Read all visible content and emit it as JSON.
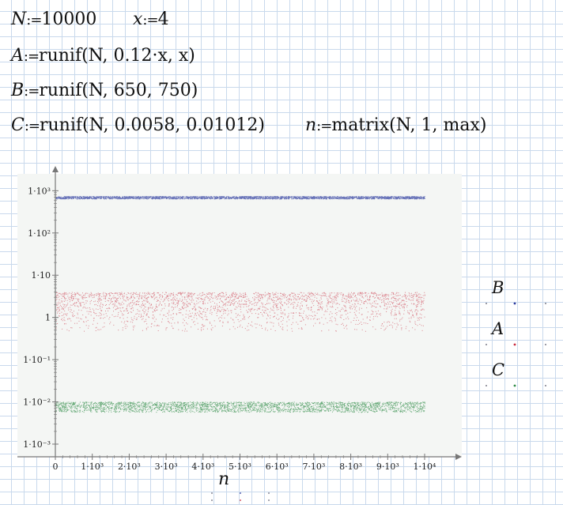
{
  "worksheet": {
    "def_N": {
      "var": "N",
      "op": ":=",
      "expr": "10000"
    },
    "def_x": {
      "var": "x",
      "op": ":=",
      "expr": "4"
    },
    "def_A": {
      "var": "A",
      "op": ":=",
      "expr": "runif(N, 0.12·x, x)"
    },
    "def_B": {
      "var": "B",
      "op": ":=",
      "expr": "runif(N, 650, 750)"
    },
    "def_C": {
      "var": "C",
      "op": ":=",
      "expr": "runif(N, 0.0058, 0.01012)"
    },
    "def_n": {
      "var": "n",
      "op": ":=",
      "expr": "matrix(N, 1, max)"
    }
  },
  "chart_data": {
    "type": "scatter",
    "xlabel": "n",
    "xlim": [
      0,
      10000
    ],
    "ylim_log10": [
      -3.3,
      3.4
    ],
    "yscale": "log",
    "x_ticks": [
      "0",
      "1·10³",
      "2·10³",
      "3·10³",
      "4·10³",
      "5·10³",
      "6·10³",
      "7·10³",
      "8·10³",
      "9·10³",
      "1·10⁴"
    ],
    "y_ticks": [
      {
        "value": 1000,
        "label": "1·10³"
      },
      {
        "value": 100,
        "label": "1·10²"
      },
      {
        "value": 10,
        "label": "1·10"
      },
      {
        "value": 1,
        "label": "1"
      },
      {
        "value": 0.1,
        "label": "1·10⁻¹"
      },
      {
        "value": 0.01,
        "label": "1·10⁻²"
      },
      {
        "value": 0.001,
        "label": "1·10⁻³"
      }
    ],
    "series": [
      {
        "name": "B",
        "color": "#2b3a9e",
        "y_range": [
          650,
          750
        ]
      },
      {
        "name": "A",
        "color": "#c8283c",
        "y_range": [
          0.48,
          4
        ]
      },
      {
        "name": "C",
        "color": "#2e8b46",
        "y_range": [
          0.0058,
          0.01012
        ]
      }
    ],
    "n_points": 10000,
    "grid": false,
    "legend_placement": "right"
  },
  "colors": {
    "plot_background": "#f4f6f4",
    "axis": "#777777",
    "grid_lines": "#c9d9ec"
  }
}
